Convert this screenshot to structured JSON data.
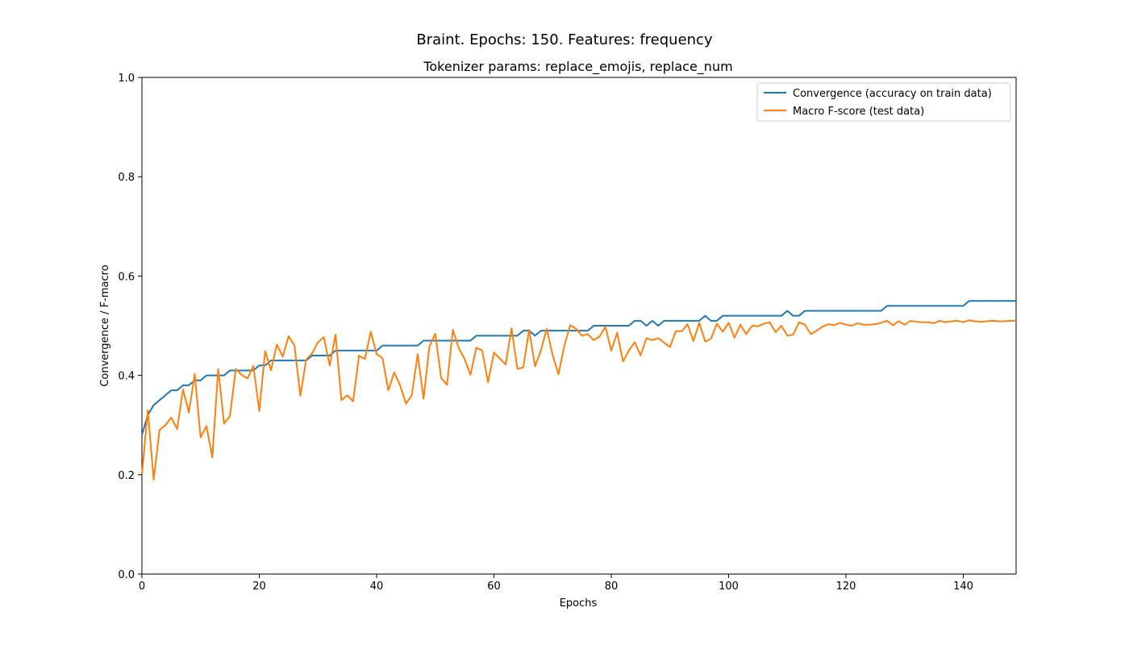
{
  "chart_data": {
    "type": "line",
    "title": "Braint. Epochs: 150. Features: frequency",
    "subtitle": "Tokenizer params: replace_emojis, replace_num",
    "xlabel": "Epochs",
    "ylabel": "Convergence / F-macro",
    "xlim": [
      0,
      149
    ],
    "ylim": [
      0.0,
      1.0
    ],
    "x_ticks": [
      0,
      20,
      40,
      60,
      80,
      100,
      120,
      140
    ],
    "x_tick_labels": [
      "0",
      "20",
      "40",
      "60",
      "80",
      "100",
      "120",
      "140"
    ],
    "y_ticks": [
      0.0,
      0.2,
      0.4,
      0.6,
      0.8,
      1.0
    ],
    "y_tick_labels": [
      "0.0",
      "0.2",
      "0.4",
      "0.6",
      "0.8",
      "1.0"
    ],
    "grid": false,
    "legend_position": "top-right",
    "series": [
      {
        "name": "Convergence (accuracy on train data)",
        "color": "#1f77b4",
        "values": [
          0.28,
          0.32,
          0.34,
          0.35,
          0.36,
          0.37,
          0.37,
          0.38,
          0.38,
          0.39,
          0.39,
          0.4,
          0.4,
          0.4,
          0.4,
          0.41,
          0.41,
          0.41,
          0.41,
          0.41,
          0.42,
          0.42,
          0.43,
          0.43,
          0.43,
          0.43,
          0.43,
          0.43,
          0.43,
          0.44,
          0.44,
          0.44,
          0.44,
          0.45,
          0.45,
          0.45,
          0.45,
          0.45,
          0.45,
          0.45,
          0.45,
          0.46,
          0.46,
          0.46,
          0.46,
          0.46,
          0.46,
          0.46,
          0.47,
          0.47,
          0.47,
          0.47,
          0.47,
          0.47,
          0.47,
          0.47,
          0.47,
          0.48,
          0.48,
          0.48,
          0.48,
          0.48,
          0.48,
          0.48,
          0.48,
          0.49,
          0.49,
          0.48,
          0.49,
          0.49,
          0.49,
          0.49,
          0.49,
          0.49,
          0.49,
          0.49,
          0.49,
          0.5,
          0.5,
          0.5,
          0.5,
          0.5,
          0.5,
          0.5,
          0.51,
          0.51,
          0.5,
          0.51,
          0.5,
          0.51,
          0.51,
          0.51,
          0.51,
          0.51,
          0.51,
          0.51,
          0.52,
          0.51,
          0.51,
          0.52,
          0.52,
          0.52,
          0.52,
          0.52,
          0.52,
          0.52,
          0.52,
          0.52,
          0.52,
          0.52,
          0.53,
          0.52,
          0.52,
          0.53,
          0.53,
          0.53,
          0.53,
          0.53,
          0.53,
          0.53,
          0.53,
          0.53,
          0.53,
          0.53,
          0.53,
          0.53,
          0.53,
          0.54,
          0.54,
          0.54,
          0.54,
          0.54,
          0.54,
          0.54,
          0.54,
          0.54,
          0.54,
          0.54,
          0.54,
          0.54,
          0.54,
          0.55,
          0.55,
          0.55,
          0.55,
          0.55,
          0.55,
          0.55,
          0.55,
          0.55
        ]
      },
      {
        "name": "Macro F-score (test data)",
        "color": "#ff7f0e",
        "values": [
          0.2,
          0.33,
          0.19,
          0.29,
          0.3,
          0.315,
          0.292,
          0.372,
          0.325,
          0.403,
          0.275,
          0.298,
          0.235,
          0.413,
          0.303,
          0.318,
          0.413,
          0.401,
          0.394,
          0.419,
          0.328,
          0.449,
          0.41,
          0.462,
          0.438,
          0.479,
          0.46,
          0.359,
          0.432,
          0.444,
          0.467,
          0.477,
          0.42,
          0.482,
          0.35,
          0.36,
          0.348,
          0.44,
          0.433,
          0.488,
          0.443,
          0.435,
          0.37,
          0.406,
          0.38,
          0.343,
          0.36,
          0.443,
          0.353,
          0.458,
          0.484,
          0.395,
          0.381,
          0.492,
          0.455,
          0.433,
          0.401,
          0.456,
          0.45,
          0.386,
          0.446,
          0.434,
          0.422,
          0.495,
          0.413,
          0.416,
          0.492,
          0.418,
          0.45,
          0.494,
          0.441,
          0.402,
          0.46,
          0.501,
          0.494,
          0.48,
          0.483,
          0.471,
          0.478,
          0.498,
          0.45,
          0.486,
          0.428,
          0.45,
          0.467,
          0.44,
          0.475,
          0.471,
          0.475,
          0.466,
          0.457,
          0.489,
          0.489,
          0.503,
          0.469,
          0.506,
          0.468,
          0.474,
          0.504,
          0.488,
          0.506,
          0.476,
          0.502,
          0.483,
          0.5,
          0.499,
          0.504,
          0.507,
          0.487,
          0.5,
          0.48,
          0.482,
          0.507,
          0.502,
          0.483,
          0.49,
          0.498,
          0.503,
          0.501,
          0.506,
          0.502,
          0.5,
          0.505,
          0.502,
          0.502,
          0.503,
          0.506,
          0.51,
          0.501,
          0.509,
          0.502,
          0.51,
          0.508,
          0.507,
          0.507,
          0.505,
          0.51,
          0.507,
          0.509,
          0.51,
          0.507,
          0.511,
          0.509,
          0.508,
          0.509,
          0.51,
          0.509,
          0.509,
          0.51,
          0.51
        ]
      }
    ]
  }
}
